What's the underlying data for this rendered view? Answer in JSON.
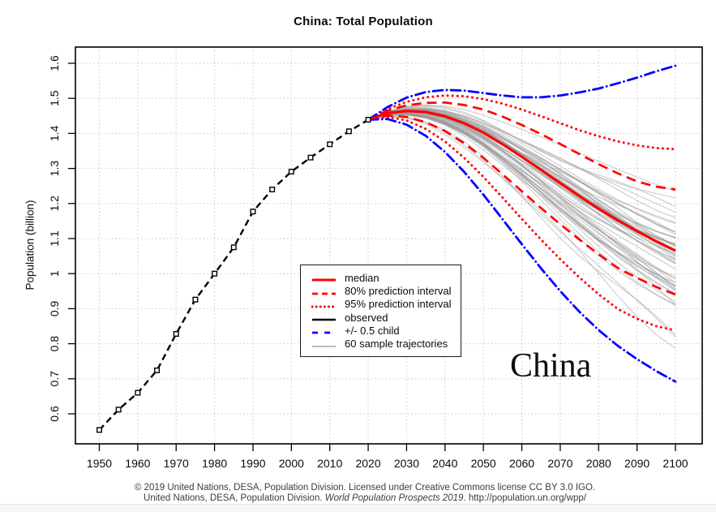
{
  "page": {
    "title": "China: Total Population",
    "annotation": "China",
    "footer_line1": "© 2019 United Nations, DESA, Population Division. Licensed under Creative Commons license CC BY 3.0 IGO.",
    "footer_line2_prefix": "United Nations, DESA, Population Division. ",
    "footer_line2_italic": "World Population Prospects 2019",
    "footer_line2_suffix": ". http://population.un.org/wpp/"
  },
  "chart_data": {
    "type": "line",
    "title": "China: Total Population",
    "xlabel": "",
    "ylabel": "Population (billion)",
    "grid": true,
    "legend_position": "center-left-of-lower-middle",
    "xlim": [
      1944,
      2102
    ],
    "ylim": [
      0.55,
      1.65
    ],
    "x_ticks": {
      "values": [
        1950,
        1960,
        1970,
        1980,
        1990,
        2000,
        2010,
        2020,
        2030,
        2040,
        2050,
        2060,
        2070,
        2080,
        2090,
        2100
      ],
      "labels": [
        "1950",
        "1960",
        "1970",
        "1980",
        "1990",
        "2000",
        "2010",
        "2020",
        "2030",
        "2040",
        "2050",
        "2060",
        "2070",
        "2080",
        "2090",
        "2100"
      ]
    },
    "y_ticks": {
      "values": [
        0.6,
        0.7,
        0.8,
        0.9,
        1.0,
        1.1,
        1.2,
        1.3,
        1.4,
        1.5,
        1.6
      ],
      "labels": [
        "0.6",
        "0.7",
        "0.8",
        "0.9",
        "1",
        "1.1",
        "1.2",
        "1.3",
        "1.4",
        "1.5",
        "1.6"
      ]
    },
    "observed": {
      "name": "observed",
      "years": [
        1950,
        1955,
        1960,
        1965,
        1970,
        1975,
        1980,
        1985,
        1990,
        1995,
        2000,
        2005,
        2010,
        2015,
        2020
      ],
      "values": [
        0.554,
        0.612,
        0.66,
        0.724,
        0.828,
        0.926,
        1.0,
        1.075,
        1.177,
        1.24,
        1.291,
        1.331,
        1.369,
        1.406,
        1.439
      ],
      "color": "#000000",
      "dash": "8 5",
      "width": 2.4,
      "marker": "open-square"
    },
    "projections": {
      "years": [
        2020,
        2025,
        2030,
        2035,
        2040,
        2045,
        2050,
        2055,
        2060,
        2065,
        2070,
        2075,
        2080,
        2085,
        2090,
        2095,
        2100
      ],
      "median": {
        "name": "median",
        "values": [
          1.439,
          1.458,
          1.464,
          1.461,
          1.449,
          1.429,
          1.402,
          1.369,
          1.333,
          1.296,
          1.258,
          1.221,
          1.185,
          1.152,
          1.121,
          1.092,
          1.065
        ],
        "color": "#ff0000",
        "dash": "",
        "width": 3.2
      },
      "pi80": {
        "name": "80% prediction interval",
        "upper": [
          1.439,
          1.465,
          1.48,
          1.487,
          1.488,
          1.481,
          1.468,
          1.448,
          1.424,
          1.398,
          1.37,
          1.341,
          1.312,
          1.286,
          1.263,
          1.248,
          1.24
        ],
        "lower": [
          1.439,
          1.451,
          1.447,
          1.432,
          1.407,
          1.372,
          1.33,
          1.283,
          1.235,
          1.187,
          1.141,
          1.097,
          1.055,
          1.016,
          0.988,
          0.962,
          0.94
        ],
        "color": "#ff0000",
        "dash": "12 7",
        "width": 2.7
      },
      "pi95": {
        "name": "95% prediction interval",
        "upper": [
          1.439,
          1.469,
          1.49,
          1.503,
          1.508,
          1.506,
          1.498,
          1.485,
          1.468,
          1.449,
          1.429,
          1.409,
          1.392,
          1.377,
          1.366,
          1.358,
          1.355
        ],
        "lower": [
          1.439,
          1.447,
          1.437,
          1.413,
          1.377,
          1.33,
          1.276,
          1.217,
          1.156,
          1.097,
          1.041,
          0.989,
          0.941,
          0.899,
          0.871,
          0.85,
          0.838
        ],
        "color": "#ff0000",
        "dash": "0.1 6",
        "width": 3.0
      },
      "half_child": {
        "name": "+/- 0.5 child",
        "upper": [
          1.439,
          1.475,
          1.502,
          1.518,
          1.524,
          1.522,
          1.515,
          1.508,
          1.503,
          1.503,
          1.508,
          1.517,
          1.528,
          1.543,
          1.559,
          1.577,
          1.593
        ],
        "lower": [
          1.439,
          1.441,
          1.425,
          1.393,
          1.347,
          1.29,
          1.225,
          1.155,
          1.084,
          1.015,
          0.95,
          0.891,
          0.839,
          0.794,
          0.756,
          0.722,
          0.692
        ],
        "color": "#0000ff",
        "dash": "12 5 0.1 5",
        "width": 2.8
      }
    },
    "sample_trajectories": {
      "name": "60 sample trajectories",
      "count": 60,
      "seed": 11,
      "color": "#9a9a9a",
      "opacity": 0.5,
      "width": 1.1,
      "sigma_2100": 0.125
    },
    "legend": {
      "items": [
        {
          "label": "median",
          "color": "#ff0000",
          "dash": "",
          "width": 3
        },
        {
          "label": "80% prediction interval",
          "color": "#ff0000",
          "dash": "7 5",
          "width": 2.7
        },
        {
          "label": "95% prediction interval",
          "color": "#ff0000",
          "dash": "0.1 5",
          "width": 3
        },
        {
          "label": "observed",
          "color": "#000000",
          "dash": "",
          "width": 2.5
        },
        {
          "label": "+/- 0.5 child",
          "color": "#0000ff",
          "dash": "7 4 0.1 4",
          "width": 2.7
        },
        {
          "label": "60 sample trajectories",
          "color": "#b3b3b3",
          "dash": "",
          "width": 1.7
        }
      ]
    }
  }
}
